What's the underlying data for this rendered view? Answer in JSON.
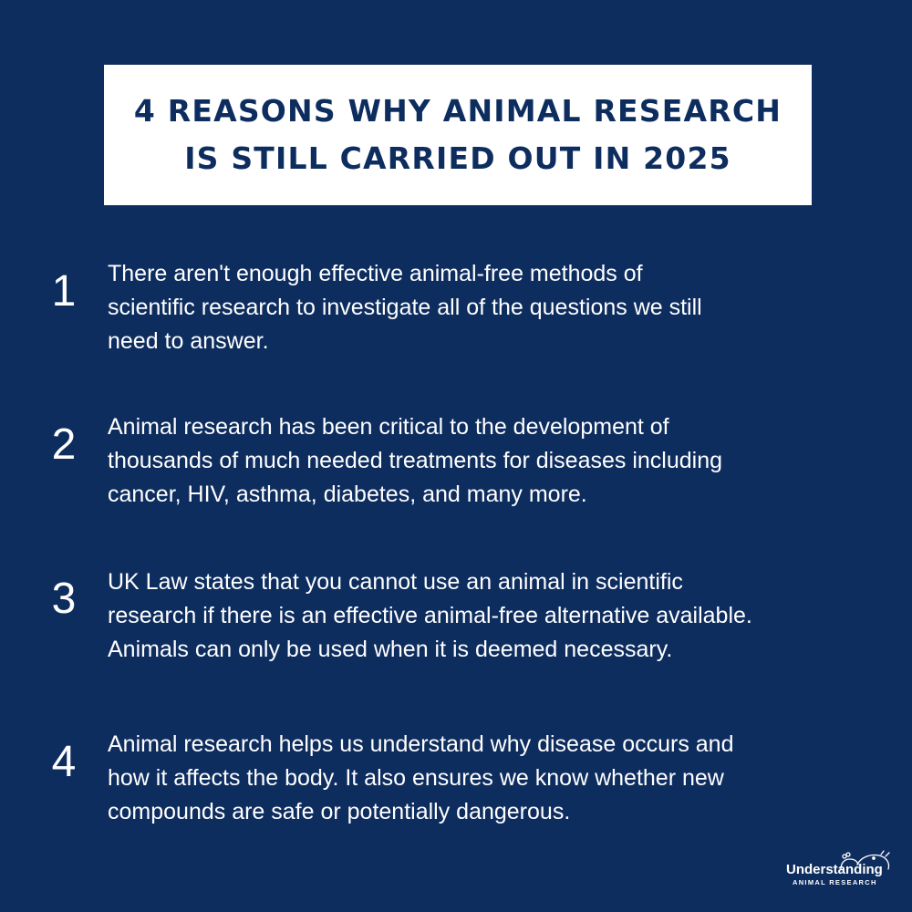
{
  "colors": {
    "background": "#0e2d5f",
    "title_box": "#ffffff",
    "title_text": "#0e2d5f",
    "body_text": "#ffffff"
  },
  "title": {
    "line1": "4 REASONS WHY ANIMAL RESEARCH",
    "line2": "IS STILL CARRIED OUT IN 2025"
  },
  "reasons": [
    {
      "number": "1",
      "lines": [
        "There aren't enough effective animal-free methods of",
        "scientific research to investigate all of the questions we still",
        "need to answer."
      ]
    },
    {
      "number": "2",
      "lines": [
        "Animal research has been critical to the development of",
        "thousands of much needed treatments for diseases including",
        "cancer, HIV, asthma, diabetes, and many more."
      ]
    },
    {
      "number": "3",
      "lines": [
        "UK Law states that you cannot use an animal in scientific",
        "research if there is an effective animal-free alternative available.",
        "Animals can only be used when it is deemed necessary."
      ]
    },
    {
      "number": "4",
      "lines": [
        "Animal research helps us understand why disease occurs and",
        "how it affects the body. It also ensures we know whether new",
        "compounds are safe or potentially dangerous."
      ]
    }
  ],
  "logo": {
    "icon": "animals-outline-icon",
    "main": "Understanding",
    "sub": "ANIMAL RESEARCH"
  }
}
